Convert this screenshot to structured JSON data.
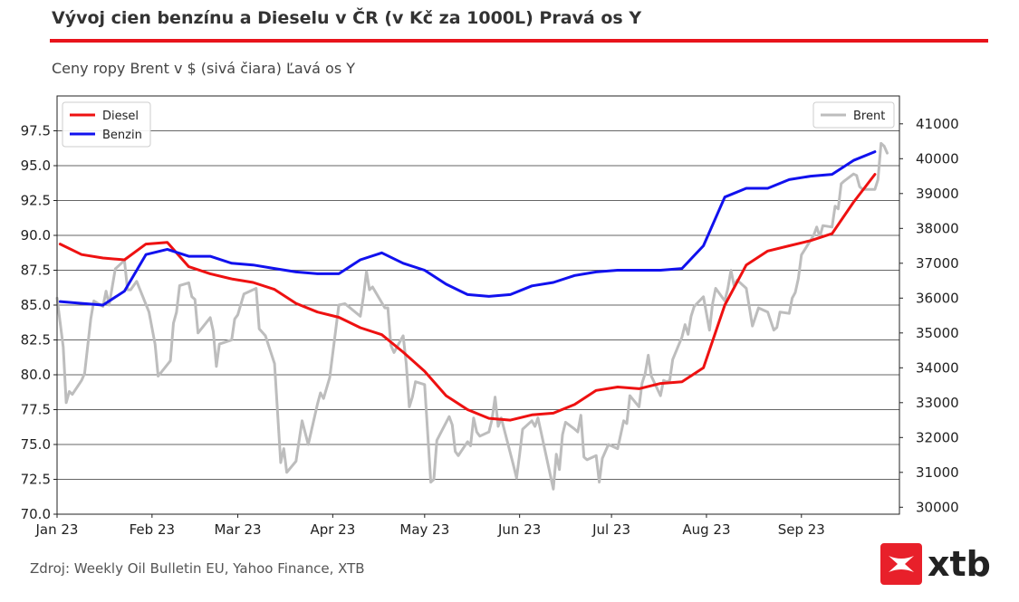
{
  "header": {
    "title": "Vývoj cien benzínu a Dieselu v ČR (v Kč za 1000L) Pravá os Y",
    "subtitle": "Ceny ropy Brent v $ (sivá čiara) Ľavá os Y"
  },
  "footer": {
    "source": "Zdroj: Weekly Oil Bulletin EU, Yahoo Finance, XTB"
  },
  "logo": {
    "text": "xtb",
    "brand_color": "#e8202a"
  },
  "chart_data": {
    "type": "line",
    "title": "Vývoj cien benzínu a Dieselu v ČR (v Kč za 1000L) Pravá os Y",
    "subtitle": "Ceny ropy Brent v $ (sivá čiara) Ľavá os Y",
    "xlabel": "",
    "ylabel": "",
    "x_domain": [
      "2023-01-01",
      "2023-10-03"
    ],
    "x_ticks": [
      {
        "date": "2023-01-01",
        "label": "Jan 23"
      },
      {
        "date": "2023-02-01",
        "label": "Feb 23"
      },
      {
        "date": "2023-03-01",
        "label": "Mar 23"
      },
      {
        "date": "2023-04-01",
        "label": "Apr 23"
      },
      {
        "date": "2023-05-01",
        "label": "May 23"
      },
      {
        "date": "2023-06-01",
        "label": "Jun 23"
      },
      {
        "date": "2023-07-01",
        "label": "Jul 23"
      },
      {
        "date": "2023-08-01",
        "label": "Aug 23"
      },
      {
        "date": "2023-09-01",
        "label": "Sep 23"
      }
    ],
    "y_left": {
      "range": [
        70,
        100
      ],
      "ticks": [
        "70.0",
        "72.5",
        "75.0",
        "77.5",
        "80.0",
        "82.5",
        "85.0",
        "87.5",
        "90.0",
        "92.5",
        "95.0",
        "97.5"
      ]
    },
    "y_right": {
      "range": [
        29800,
        41800
      ],
      "ticks": [
        "30000",
        "31000",
        "32000",
        "33000",
        "34000",
        "35000",
        "36000",
        "37000",
        "38000",
        "39000",
        "40000",
        "41000"
      ]
    },
    "grid": "horizontal",
    "legends": [
      {
        "position": "top-left",
        "entries": [
          "Diesel",
          "Benzin"
        ]
      },
      {
        "position": "top-right",
        "entries": [
          "Brent"
        ]
      }
    ],
    "series": [
      {
        "name": "Diesel",
        "axis": "right",
        "color": "#ee1111",
        "points": [
          [
            "2023-01-02",
            37550
          ],
          [
            "2023-01-09",
            37250
          ],
          [
            "2023-01-16",
            37150
          ],
          [
            "2023-01-23",
            37100
          ],
          [
            "2023-01-30",
            37550
          ],
          [
            "2023-02-06",
            37600
          ],
          [
            "2023-02-13",
            36900
          ],
          [
            "2023-02-20",
            36700
          ],
          [
            "2023-02-27",
            36550
          ],
          [
            "2023-03-06",
            36450
          ],
          [
            "2023-03-13",
            36250
          ],
          [
            "2023-03-20",
            35850
          ],
          [
            "2023-03-27",
            35600
          ],
          [
            "2023-04-03",
            35450
          ],
          [
            "2023-04-10",
            35150
          ],
          [
            "2023-04-17",
            34950
          ],
          [
            "2023-04-24",
            34450
          ],
          [
            "2023-05-01",
            33900
          ],
          [
            "2023-05-08",
            33200
          ],
          [
            "2023-05-15",
            32800
          ],
          [
            "2023-05-22",
            32550
          ],
          [
            "2023-05-29",
            32500
          ],
          [
            "2023-06-05",
            32650
          ],
          [
            "2023-06-12",
            32700
          ],
          [
            "2023-06-19",
            32950
          ],
          [
            "2023-06-26",
            33350
          ],
          [
            "2023-07-03",
            33450
          ],
          [
            "2023-07-10",
            33400
          ],
          [
            "2023-07-17",
            33550
          ],
          [
            "2023-07-24",
            33600
          ],
          [
            "2023-07-31",
            34000
          ],
          [
            "2023-08-07",
            35800
          ],
          [
            "2023-08-14",
            36950
          ],
          [
            "2023-08-21",
            37350
          ],
          [
            "2023-08-28",
            37500
          ],
          [
            "2023-09-04",
            37650
          ],
          [
            "2023-09-11",
            37850
          ],
          [
            "2023-09-18",
            38750
          ],
          [
            "2023-09-25",
            39550
          ]
        ]
      },
      {
        "name": "Benzin",
        "axis": "right",
        "color": "#1111ee",
        "points": [
          [
            "2023-01-02",
            35900
          ],
          [
            "2023-01-09",
            35850
          ],
          [
            "2023-01-16",
            35800
          ],
          [
            "2023-01-23",
            36200
          ],
          [
            "2023-01-30",
            37250
          ],
          [
            "2023-02-06",
            37400
          ],
          [
            "2023-02-13",
            37200
          ],
          [
            "2023-02-20",
            37200
          ],
          [
            "2023-02-27",
            37000
          ],
          [
            "2023-03-06",
            36950
          ],
          [
            "2023-03-13",
            36850
          ],
          [
            "2023-03-20",
            36750
          ],
          [
            "2023-03-27",
            36700
          ],
          [
            "2023-04-03",
            36700
          ],
          [
            "2023-04-10",
            37100
          ],
          [
            "2023-04-17",
            37300
          ],
          [
            "2023-04-24",
            37000
          ],
          [
            "2023-05-01",
            36800
          ],
          [
            "2023-05-08",
            36400
          ],
          [
            "2023-05-15",
            36100
          ],
          [
            "2023-05-22",
            36050
          ],
          [
            "2023-05-29",
            36100
          ],
          [
            "2023-06-05",
            36350
          ],
          [
            "2023-06-12",
            36450
          ],
          [
            "2023-06-19",
            36650
          ],
          [
            "2023-06-26",
            36750
          ],
          [
            "2023-07-03",
            36800
          ],
          [
            "2023-07-10",
            36800
          ],
          [
            "2023-07-17",
            36800
          ],
          [
            "2023-07-24",
            36850
          ],
          [
            "2023-07-31",
            37500
          ],
          [
            "2023-08-07",
            38900
          ],
          [
            "2023-08-14",
            39150
          ],
          [
            "2023-08-21",
            39150
          ],
          [
            "2023-08-28",
            39400
          ],
          [
            "2023-09-04",
            39500
          ],
          [
            "2023-09-11",
            39550
          ],
          [
            "2023-09-18",
            39950
          ],
          [
            "2023-09-25",
            40200
          ]
        ]
      },
      {
        "name": "Brent",
        "axis": "left",
        "color": "#bdbdbd",
        "points": [
          [
            "2023-01-01",
            85.5
          ],
          [
            "2023-01-03",
            82.0
          ],
          [
            "2023-01-04",
            78.0
          ],
          [
            "2023-01-05",
            78.8
          ],
          [
            "2023-01-06",
            78.6
          ],
          [
            "2023-01-09",
            79.6
          ],
          [
            "2023-01-10",
            80.1
          ],
          [
            "2023-01-12",
            84.0
          ],
          [
            "2023-01-13",
            85.3
          ],
          [
            "2023-01-16",
            84.9
          ],
          [
            "2023-01-17",
            86.0
          ],
          [
            "2023-01-18",
            85.0
          ],
          [
            "2023-01-20",
            87.6
          ],
          [
            "2023-01-23",
            88.2
          ],
          [
            "2023-01-24",
            86.1
          ],
          [
            "2023-01-25",
            86.1
          ],
          [
            "2023-01-27",
            86.7
          ],
          [
            "2023-01-31",
            84.5
          ],
          [
            "2023-02-02",
            82.2
          ],
          [
            "2023-02-03",
            79.9
          ],
          [
            "2023-02-07",
            81.0
          ],
          [
            "2023-02-08",
            83.7
          ],
          [
            "2023-02-09",
            84.5
          ],
          [
            "2023-02-10",
            86.4
          ],
          [
            "2023-02-13",
            86.6
          ],
          [
            "2023-02-14",
            85.6
          ],
          [
            "2023-02-15",
            85.4
          ],
          [
            "2023-02-16",
            83.0
          ],
          [
            "2023-02-20",
            84.1
          ],
          [
            "2023-02-21",
            83.1
          ],
          [
            "2023-02-22",
            80.6
          ],
          [
            "2023-02-23",
            82.2
          ],
          [
            "2023-02-27",
            82.5
          ],
          [
            "2023-02-28",
            84.0
          ],
          [
            "2023-03-01",
            84.3
          ],
          [
            "2023-03-03",
            85.8
          ],
          [
            "2023-03-07",
            86.2
          ],
          [
            "2023-03-08",
            83.3
          ],
          [
            "2023-03-10",
            82.8
          ],
          [
            "2023-03-13",
            80.8
          ],
          [
            "2023-03-15",
            73.7
          ],
          [
            "2023-03-16",
            74.7
          ],
          [
            "2023-03-17",
            73.0
          ],
          [
            "2023-03-20",
            73.8
          ],
          [
            "2023-03-22",
            76.7
          ],
          [
            "2023-03-24",
            75.0
          ],
          [
            "2023-03-27",
            77.9
          ],
          [
            "2023-03-28",
            78.7
          ],
          [
            "2023-03-29",
            78.3
          ],
          [
            "2023-03-31",
            79.8
          ],
          [
            "2023-04-03",
            85.0
          ],
          [
            "2023-04-05",
            85.1
          ],
          [
            "2023-04-10",
            84.2
          ],
          [
            "2023-04-11",
            85.6
          ],
          [
            "2023-04-12",
            87.4
          ],
          [
            "2023-04-13",
            86.1
          ],
          [
            "2023-04-14",
            86.3
          ],
          [
            "2023-04-18",
            84.8
          ],
          [
            "2023-04-19",
            84.8
          ],
          [
            "2023-04-20",
            82.1
          ],
          [
            "2023-04-21",
            81.6
          ],
          [
            "2023-04-24",
            82.8
          ],
          [
            "2023-04-25",
            80.8
          ],
          [
            "2023-04-26",
            77.7
          ],
          [
            "2023-04-27",
            78.4
          ],
          [
            "2023-04-28",
            79.5
          ],
          [
            "2023-05-01",
            79.3
          ],
          [
            "2023-05-03",
            72.3
          ],
          [
            "2023-05-04",
            72.5
          ],
          [
            "2023-05-05",
            75.3
          ],
          [
            "2023-05-09",
            77.0
          ],
          [
            "2023-05-10",
            76.4
          ],
          [
            "2023-05-11",
            74.5
          ],
          [
            "2023-05-12",
            74.2
          ],
          [
            "2023-05-15",
            75.2
          ],
          [
            "2023-05-16",
            74.9
          ],
          [
            "2023-05-17",
            76.9
          ],
          [
            "2023-05-18",
            75.9
          ],
          [
            "2023-05-19",
            75.6
          ],
          [
            "2023-05-22",
            75.9
          ],
          [
            "2023-05-23",
            76.8
          ],
          [
            "2023-05-24",
            78.4
          ],
          [
            "2023-05-25",
            76.3
          ],
          [
            "2023-05-26",
            76.9
          ],
          [
            "2023-05-30",
            73.5
          ],
          [
            "2023-05-31",
            72.6
          ],
          [
            "2023-06-01",
            74.3
          ],
          [
            "2023-06-02",
            76.1
          ],
          [
            "2023-06-05",
            76.7
          ],
          [
            "2023-06-06",
            76.3
          ],
          [
            "2023-06-07",
            76.9
          ],
          [
            "2023-06-08",
            75.9
          ],
          [
            "2023-06-12",
            71.8
          ],
          [
            "2023-06-13",
            74.3
          ],
          [
            "2023-06-14",
            73.2
          ],
          [
            "2023-06-15",
            75.7
          ],
          [
            "2023-06-16",
            76.6
          ],
          [
            "2023-06-19",
            76.1
          ],
          [
            "2023-06-20",
            75.9
          ],
          [
            "2023-06-21",
            77.1
          ],
          [
            "2023-06-22",
            74.1
          ],
          [
            "2023-06-23",
            73.9
          ],
          [
            "2023-06-26",
            74.2
          ],
          [
            "2023-06-27",
            72.3
          ],
          [
            "2023-06-28",
            74.0
          ],
          [
            "2023-06-30",
            75.0
          ],
          [
            "2023-07-03",
            74.7
          ],
          [
            "2023-07-05",
            76.7
          ],
          [
            "2023-07-06",
            76.5
          ],
          [
            "2023-07-07",
            78.5
          ],
          [
            "2023-07-10",
            77.7
          ],
          [
            "2023-07-11",
            79.4
          ],
          [
            "2023-07-12",
            80.1
          ],
          [
            "2023-07-13",
            81.4
          ],
          [
            "2023-07-14",
            79.9
          ],
          [
            "2023-07-17",
            78.5
          ],
          [
            "2023-07-18",
            79.6
          ],
          [
            "2023-07-19",
            79.5
          ],
          [
            "2023-07-20",
            79.6
          ],
          [
            "2023-07-21",
            81.1
          ],
          [
            "2023-07-24",
            82.7
          ],
          [
            "2023-07-25",
            83.6
          ],
          [
            "2023-07-26",
            82.9
          ],
          [
            "2023-07-27",
            84.2
          ],
          [
            "2023-07-28",
            84.9
          ],
          [
            "2023-07-31",
            85.6
          ],
          [
            "2023-08-02",
            83.2
          ],
          [
            "2023-08-03",
            85.1
          ],
          [
            "2023-08-04",
            86.2
          ],
          [
            "2023-08-07",
            85.3
          ],
          [
            "2023-08-08",
            86.2
          ],
          [
            "2023-08-09",
            87.5
          ],
          [
            "2023-08-10",
            86.4
          ],
          [
            "2023-08-11",
            86.8
          ],
          [
            "2023-08-14",
            86.2
          ],
          [
            "2023-08-16",
            83.5
          ],
          [
            "2023-08-18",
            84.8
          ],
          [
            "2023-08-21",
            84.5
          ],
          [
            "2023-08-23",
            83.2
          ],
          [
            "2023-08-24",
            83.4
          ],
          [
            "2023-08-25",
            84.5
          ],
          [
            "2023-08-28",
            84.4
          ],
          [
            "2023-08-29",
            85.5
          ],
          [
            "2023-08-30",
            85.9
          ],
          [
            "2023-08-31",
            86.9
          ],
          [
            "2023-09-01",
            88.6
          ],
          [
            "2023-09-05",
            90.0
          ],
          [
            "2023-09-06",
            90.6
          ],
          [
            "2023-09-07",
            89.9
          ],
          [
            "2023-09-08",
            90.7
          ],
          [
            "2023-09-11",
            90.6
          ],
          [
            "2023-09-12",
            92.1
          ],
          [
            "2023-09-13",
            91.9
          ],
          [
            "2023-09-14",
            93.7
          ],
          [
            "2023-09-15",
            93.9
          ],
          [
            "2023-09-18",
            94.4
          ],
          [
            "2023-09-19",
            94.3
          ],
          [
            "2023-09-20",
            93.5
          ],
          [
            "2023-09-21",
            93.3
          ],
          [
            "2023-09-25",
            93.3
          ],
          [
            "2023-09-26",
            94.0
          ],
          [
            "2023-09-27",
            96.6
          ],
          [
            "2023-09-28",
            96.4
          ],
          [
            "2023-09-29",
            95.9
          ]
        ]
      }
    ]
  }
}
